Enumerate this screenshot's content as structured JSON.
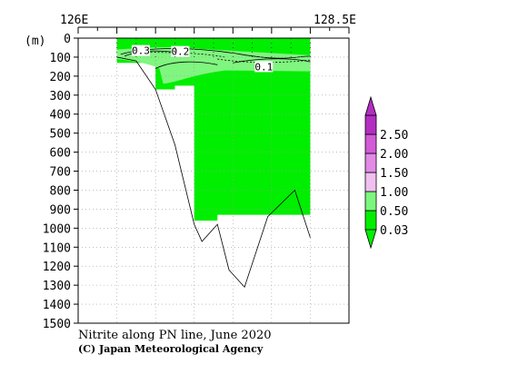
{
  "chart_data": {
    "type": "heatmap",
    "title": "Nitrite along PN line, June 2020",
    "credit": "(C) Japan Meteorological Agency",
    "x_tick_labels": [
      "126E",
      "128.5E"
    ],
    "xlim": [
      125.5,
      129.0
    ],
    "ylabel": "(m)",
    "ylim": [
      0,
      1500
    ],
    "y_ticks": [
      0,
      100,
      200,
      300,
      400,
      500,
      600,
      700,
      800,
      900,
      1000,
      1100,
      1200,
      1300,
      1400,
      1500
    ],
    "grid": true,
    "station_lons": [
      126.0,
      126.25,
      126.5,
      126.75,
      127.0,
      127.25,
      127.5,
      127.75,
      128.0,
      128.25,
      128.5
    ],
    "bottom_depth_profile": [
      {
        "lon": 126.0,
        "depth": 100
      },
      {
        "lon": 126.25,
        "depth": 120
      },
      {
        "lon": 126.5,
        "depth": 270
      },
      {
        "lon": 126.75,
        "depth": 560
      },
      {
        "lon": 127.0,
        "depth": 980
      },
      {
        "lon": 127.1,
        "depth": 1070
      },
      {
        "lon": 127.3,
        "depth": 980
      },
      {
        "lon": 127.45,
        "depth": 1220
      },
      {
        "lon": 127.65,
        "depth": 1310
      },
      {
        "lon": 127.95,
        "depth": 940
      },
      {
        "lon": 128.3,
        "depth": 800
      },
      {
        "lon": 128.5,
        "depth": 1050
      }
    ],
    "data_coverage": [
      {
        "lon": 126.0,
        "depth": 0
      },
      {
        "lon": 128.5,
        "depth": 0
      },
      {
        "lon": 128.5,
        "depth": 930
      },
      {
        "lon": 127.3,
        "depth": 930
      },
      {
        "lon": 127.3,
        "depth": 960
      },
      {
        "lon": 127.0,
        "depth": 960
      },
      {
        "lon": 127.0,
        "depth": 250
      },
      {
        "lon": 126.75,
        "depth": 250
      },
      {
        "lon": 126.75,
        "depth": 270
      },
      {
        "lon": 126.5,
        "depth": 270
      },
      {
        "lon": 126.5,
        "depth": 130
      },
      {
        "lon": 126.0,
        "depth": 130
      }
    ],
    "contour_labels": [
      {
        "text": "0.3",
        "lon": 126.31,
        "depth": 65
      },
      {
        "text": "0.2",
        "lon": 126.82,
        "depth": 70
      },
      {
        "text": "0.1",
        "lon": 127.9,
        "depth": 150
      }
    ],
    "legend": {
      "labels": [
        "0.03",
        "0.50",
        "1.00",
        "1.50",
        "2.00",
        "2.50"
      ],
      "colors": [
        "#00ee00",
        "#7df67d",
        "#f0c0f0",
        "#e28ae6",
        "#d35ad8",
        "#b42ec2"
      ]
    },
    "colors": {
      "low": "#00ee00",
      "mid": "#80f580",
      "high": "#ffffff",
      "line": "#000000"
    }
  }
}
